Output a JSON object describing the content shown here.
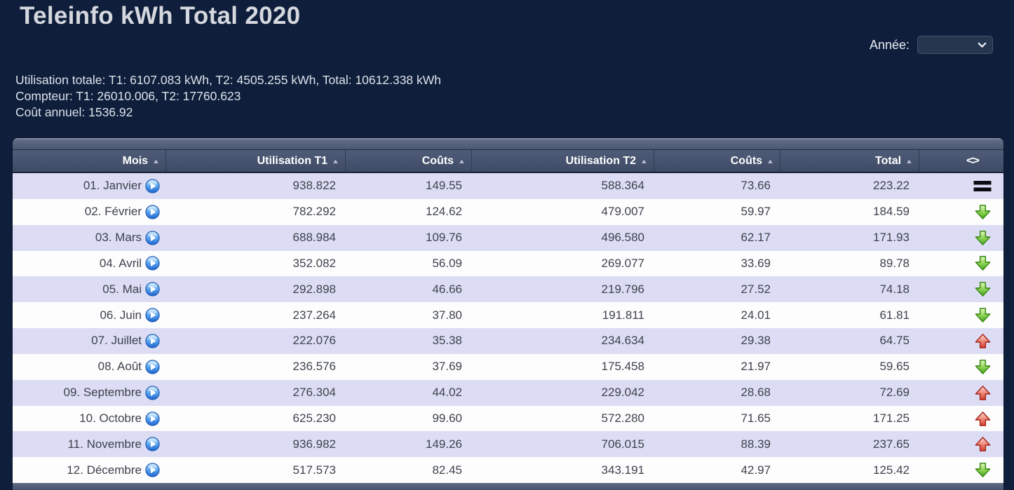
{
  "page": {
    "title": "Teleinfo kWh Total 2020",
    "year_picker": {
      "label": "Année:",
      "selected": ""
    },
    "summary": {
      "usage_total": "Utilisation totale: T1: 6107.083 kWh, T2: 4505.255 kWh, Total: 10612.338 kWh",
      "meter": "Compteur: T1: 26010.006, T2: 17760.623",
      "annual_cost": "Coût annuel: 1536.92"
    }
  },
  "table": {
    "columns": [
      {
        "key": "month",
        "label": "Mois",
        "sortable": true
      },
      {
        "key": "t1",
        "label": "Utilisation T1",
        "sortable": true
      },
      {
        "key": "c1",
        "label": "Coûts",
        "sortable": true
      },
      {
        "key": "t2",
        "label": "Utilisation T2",
        "sortable": true
      },
      {
        "key": "c2",
        "label": "Coûts",
        "sortable": true
      },
      {
        "key": "total",
        "label": "Total",
        "sortable": true
      },
      {
        "key": "trend",
        "label": "<>",
        "sortable": false
      }
    ],
    "rows": [
      {
        "month": "01. Janvier",
        "t1": "938.822",
        "c1": "149.55",
        "t2": "588.364",
        "c2": "73.66",
        "total": "223.22",
        "trend": "equal"
      },
      {
        "month": "02. Février",
        "t1": "782.292",
        "c1": "124.62",
        "t2": "479.007",
        "c2": "59.97",
        "total": "184.59",
        "trend": "down"
      },
      {
        "month": "03. Mars",
        "t1": "688.984",
        "c1": "109.76",
        "t2": "496.580",
        "c2": "62.17",
        "total": "171.93",
        "trend": "down"
      },
      {
        "month": "04. Avril",
        "t1": "352.082",
        "c1": "56.09",
        "t2": "269.077",
        "c2": "33.69",
        "total": "89.78",
        "trend": "down"
      },
      {
        "month": "05. Mai",
        "t1": "292.898",
        "c1": "46.66",
        "t2": "219.796",
        "c2": "27.52",
        "total": "74.18",
        "trend": "down"
      },
      {
        "month": "06. Juin",
        "t1": "237.264",
        "c1": "37.80",
        "t2": "191.811",
        "c2": "24.01",
        "total": "61.81",
        "trend": "down"
      },
      {
        "month": "07. Juillet",
        "t1": "222.076",
        "c1": "35.38",
        "t2": "234.634",
        "c2": "29.38",
        "total": "64.75",
        "trend": "up"
      },
      {
        "month": "08. Août",
        "t1": "236.576",
        "c1": "37.69",
        "t2": "175.458",
        "c2": "21.97",
        "total": "59.65",
        "trend": "down"
      },
      {
        "month": "09. Septembre",
        "t1": "276.304",
        "c1": "44.02",
        "t2": "229.042",
        "c2": "28.68",
        "total": "72.69",
        "trend": "up"
      },
      {
        "month": "10. Octobre",
        "t1": "625.230",
        "c1": "99.60",
        "t2": "572.280",
        "c2": "71.65",
        "total": "171.25",
        "trend": "up"
      },
      {
        "month": "11. Novembre",
        "t1": "936.982",
        "c1": "149.26",
        "t2": "706.015",
        "c2": "88.39",
        "total": "237.65",
        "trend": "up"
      },
      {
        "month": "12. Décembre",
        "t1": "517.573",
        "c1": "82.45",
        "t2": "343.191",
        "c2": "42.97",
        "total": "125.42",
        "trend": "down"
      }
    ]
  },
  "icons": {
    "sort_asc": "▲",
    "play": "play-button",
    "trend_up": "glossy-red-up-arrow",
    "trend_down": "glossy-green-down-arrow",
    "trend_equal": "black-equals",
    "year_chevron": "chevron-down"
  },
  "colors": {
    "page_bg": "#0f1f3b",
    "title_text": "#d6d8df",
    "header_bg": "#46536d",
    "row_odd": "#dcddf5",
    "row_even": "#fdfdfe",
    "row_text": "#3e424c",
    "trend_up": "#d23f2f",
    "trend_down": "#52b71e",
    "trend_equal": "#0a0d12",
    "play_blue": "#1b63cd"
  }
}
